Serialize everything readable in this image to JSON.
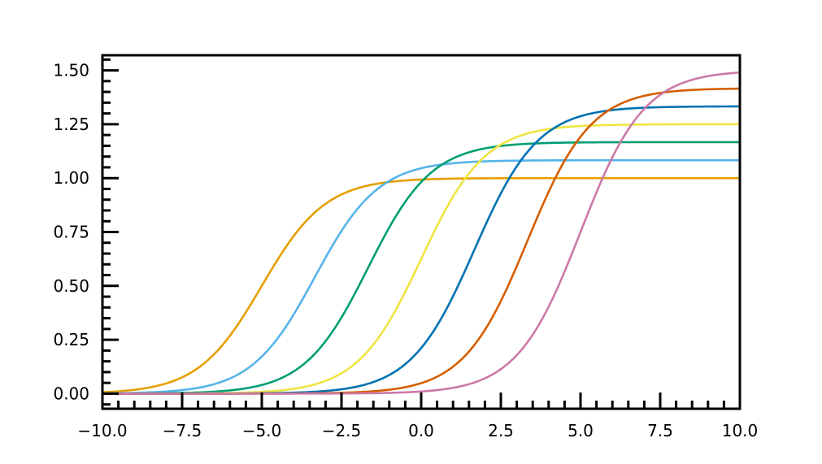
{
  "chart_data": {
    "type": "line",
    "title": "",
    "xlabel": "",
    "ylabel": "",
    "xlim": [
      -10,
      10
    ],
    "ylim": [
      -0.07,
      1.57
    ],
    "grid": false,
    "legend": "none",
    "x_ticks": [
      -10.0,
      -7.5,
      -5.0,
      -2.5,
      0.0,
      2.5,
      5.0,
      7.5,
      10.0
    ],
    "x_tick_labels": [
      "−10.0",
      "−7.5",
      "−5.0",
      "−2.5",
      "0.0",
      "2.5",
      "5.0",
      "7.5",
      "10.0"
    ],
    "y_ticks": [
      0.0,
      0.25,
      0.5,
      0.75,
      1.0,
      1.25,
      1.5
    ],
    "y_tick_labels": [
      "0.00",
      "0.25",
      "0.50",
      "0.75",
      "1.00",
      "1.25",
      "1.50"
    ],
    "x_minor_step": 0.5,
    "y_minor_step": 0.05,
    "series": [
      {
        "color": "#E69F00",
        "function": "logistic",
        "amplitude": 1.0,
        "midpoint": -5.0,
        "steepness": 1.0
      },
      {
        "color": "#56B4E9",
        "function": "logistic",
        "amplitude": 1.083,
        "midpoint": -3.333,
        "steepness": 1.0
      },
      {
        "color": "#009E73",
        "function": "logistic",
        "amplitude": 1.167,
        "midpoint": -1.667,
        "steepness": 1.0
      },
      {
        "color": "#F0E442",
        "function": "logistic",
        "amplitude": 1.25,
        "midpoint": 0.0,
        "steepness": 1.0
      },
      {
        "color": "#0072B2",
        "function": "logistic",
        "amplitude": 1.333,
        "midpoint": 1.667,
        "steepness": 1.0
      },
      {
        "color": "#D55E00",
        "function": "logistic",
        "amplitude": 1.417,
        "midpoint": 3.333,
        "steepness": 1.0
      },
      {
        "color": "#CC79A7",
        "function": "logistic",
        "amplitude": 1.5,
        "midpoint": 5.0,
        "steepness": 1.0
      }
    ]
  }
}
